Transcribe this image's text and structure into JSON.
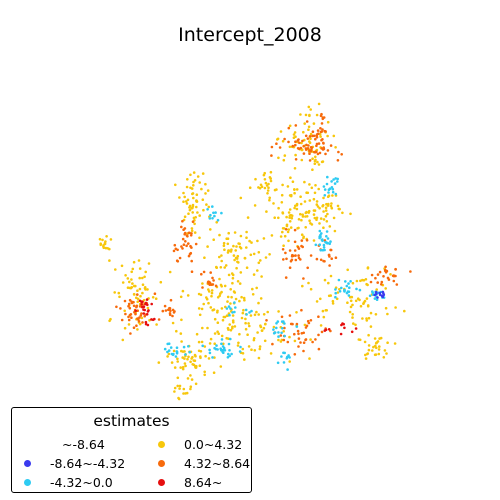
{
  "title": "Intercept_2008",
  "legend": {
    "title": "estimates",
    "items": [
      {
        "label": "~-8.64",
        "color": "#ffffff"
      },
      {
        "label": "-8.64~-4.32",
        "color": "#3a3aee"
      },
      {
        "label": "-4.32~0.0",
        "color": "#2ecbf2"
      },
      {
        "label": "0.0~4.32",
        "color": "#f7c70c"
      },
      {
        "label": "4.32~8.64",
        "color": "#f76a0c"
      },
      {
        "label": "8.64~",
        "color": "#e60f0f"
      }
    ]
  }
}
